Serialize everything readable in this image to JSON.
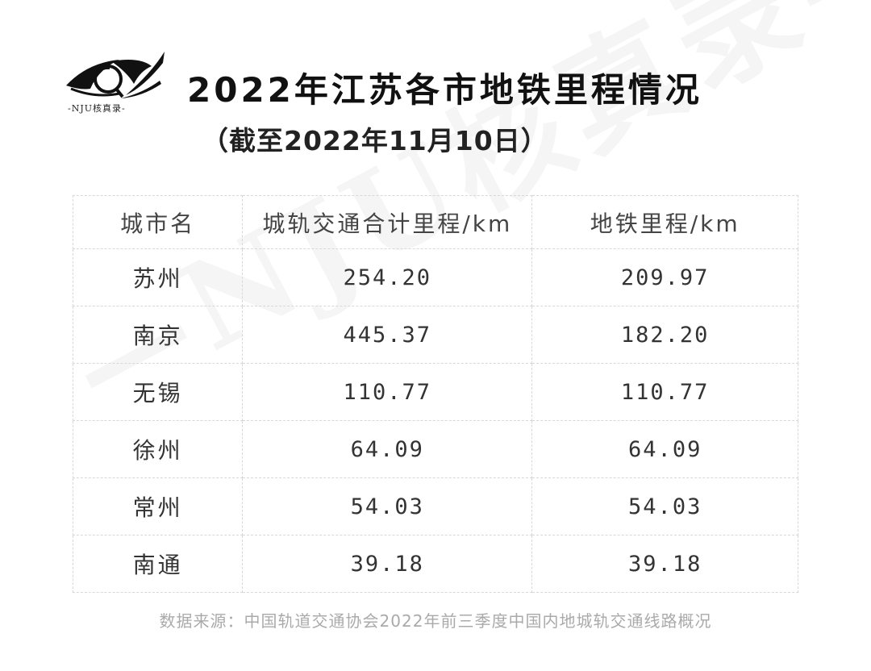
{
  "logo": {
    "text": "-NJU核真录-"
  },
  "watermark": "—NJU核真录—",
  "title": "2022年江苏各市地铁里程情况",
  "subtitle": "（截至2022年11月10日）",
  "chart_data": {
    "type": "table",
    "columns": [
      "城市名",
      "城轨交通合计里程/km",
      "地铁里程/km"
    ],
    "rows": [
      [
        "苏州",
        "254.20",
        "209.97"
      ],
      [
        "南京",
        "445.37",
        "182.20"
      ],
      [
        "无锡",
        "110.77",
        "110.77"
      ],
      [
        "徐州",
        "64.09",
        "64.09"
      ],
      [
        "常州",
        "54.03",
        "54.03"
      ],
      [
        "南通",
        "39.18",
        "39.18"
      ]
    ]
  },
  "source": "数据来源：中国轨道交通协会2022年前三季度中国内地城轨交通线路概况"
}
